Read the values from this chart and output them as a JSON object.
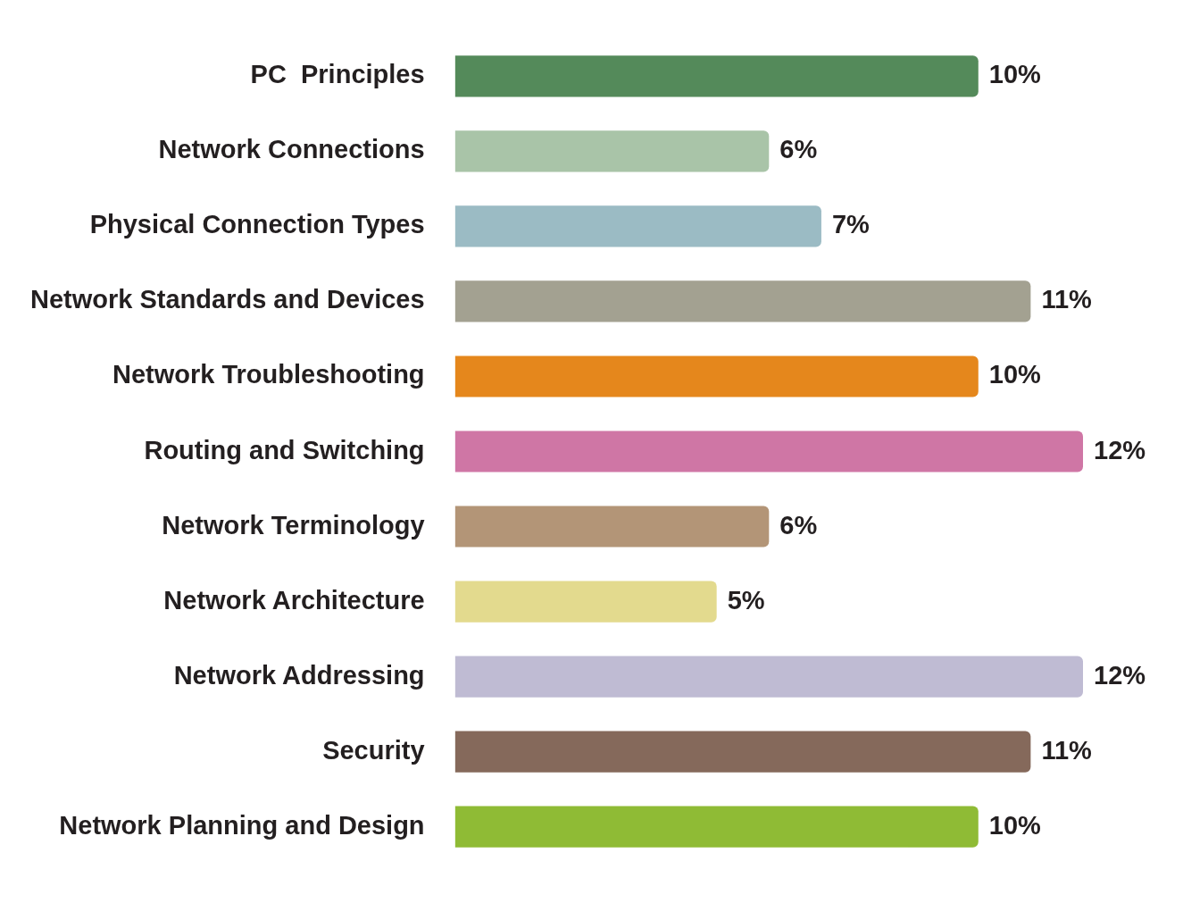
{
  "chart_data": {
    "type": "bar",
    "orientation": "horizontal",
    "categories": [
      "PC  Principles",
      "Network Connections",
      "Physical Connection Types",
      "Network Standards and Devices",
      "Network Troubleshooting",
      "Routing and Switching",
      "Network Terminology",
      "Network Architecture",
      "Network Addressing",
      "Security",
      "Network Planning and Design"
    ],
    "values": [
      10,
      6,
      7,
      11,
      10,
      12,
      6,
      5,
      12,
      11,
      10
    ],
    "value_labels": [
      "10%",
      "6%",
      "7%",
      "11%",
      "10%",
      "12%",
      "6%",
      "5%",
      "12%",
      "11%",
      "10%"
    ],
    "colors": [
      "#548a5a",
      "#a9c4a8",
      "#9bbbc4",
      "#a3a191",
      "#e5871c",
      "#cf76a5",
      "#b39577",
      "#e3da8e",
      "#bfbbd3",
      "#85695b",
      "#8fbb35"
    ],
    "legend": false
  }
}
